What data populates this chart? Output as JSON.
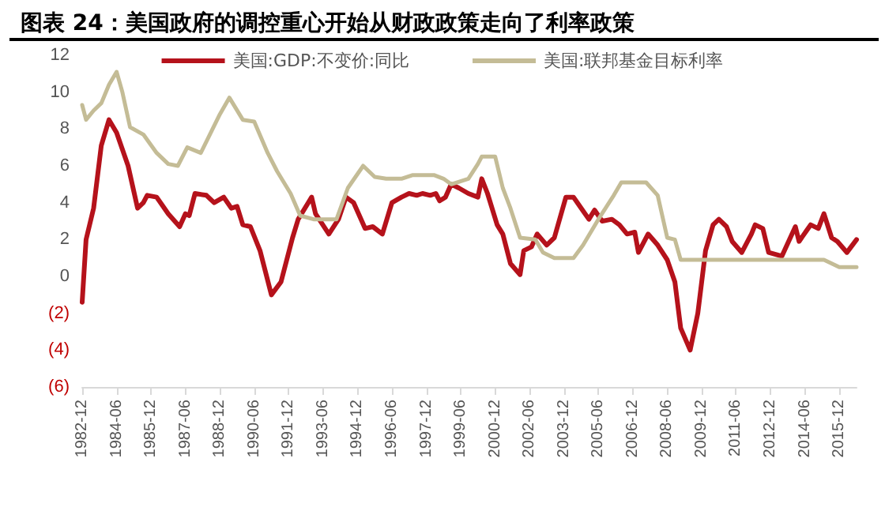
{
  "chart_data": {
    "type": "line",
    "title": "图表 24：美国政府的调控重心开始从财政政策走向了利率政策",
    "series": [
      {
        "name": "美国:GDP:不变价:同比",
        "color": "#b5121b",
        "x": [
          "1982-12",
          "1983-02",
          "1983-06",
          "1983-10",
          "1984-02",
          "1984-06",
          "1984-12",
          "1985-05",
          "1985-08",
          "1985-10",
          "1986-03",
          "1986-09",
          "1987-03",
          "1987-06",
          "1987-08",
          "1987-11",
          "1988-05",
          "1988-09",
          "1989-02",
          "1989-06",
          "1989-09",
          "1989-12",
          "1990-04",
          "1990-09",
          "1991-03",
          "1991-08",
          "1992-02",
          "1992-05",
          "1992-12",
          "1993-02",
          "1993-09",
          "1994-02",
          "1994-06",
          "1994-10",
          "1995-04",
          "1995-08",
          "1996-01",
          "1996-06",
          "1996-11",
          "1997-03",
          "1997-07",
          "1997-10",
          "1998-02",
          "1998-05",
          "1998-07",
          "1998-10",
          "1999-01",
          "1999-05",
          "1999-10",
          "2000-03",
          "2000-05",
          "2000-08",
          "2001-01",
          "2001-04",
          "2001-08",
          "2002-01",
          "2002-03",
          "2002-07",
          "2002-10",
          "2003-03",
          "2003-07",
          "2004-01",
          "2004-05",
          "2004-09",
          "2005-01",
          "2005-04",
          "2005-08",
          "2006-01",
          "2006-05",
          "2006-09",
          "2007-01",
          "2007-03",
          "2007-08",
          "2008-01",
          "2008-06",
          "2008-10",
          "2009-01",
          "2009-06",
          "2009-10",
          "2010-02",
          "2010-06",
          "2010-09",
          "2011-01",
          "2011-04",
          "2011-09",
          "2012-02",
          "2012-04",
          "2012-08",
          "2012-11",
          "2013-06",
          "2014-01",
          "2014-03",
          "2014-09",
          "2015-01",
          "2015-04",
          "2015-08",
          "2015-11",
          "2016-04",
          "2016-09"
        ],
        "values": [
          -1.4,
          2.0,
          3.7,
          7.1,
          8.5,
          7.8,
          6.0,
          3.7,
          4.0,
          4.4,
          4.3,
          3.4,
          2.7,
          3.4,
          3.3,
          4.5,
          4.4,
          4.0,
          4.3,
          3.7,
          3.8,
          2.8,
          2.7,
          1.4,
          -1.0,
          -0.3,
          2.1,
          3.1,
          4.3,
          3.4,
          2.3,
          3.1,
          4.3,
          4.0,
          2.6,
          2.7,
          2.3,
          4.0,
          4.3,
          4.5,
          4.4,
          4.5,
          4.4,
          4.5,
          4.1,
          4.3,
          5.0,
          4.8,
          4.5,
          4.3,
          5.3,
          4.5,
          2.8,
          2.3,
          0.7,
          0.1,
          1.4,
          1.6,
          2.3,
          1.7,
          2.1,
          4.3,
          4.3,
          3.7,
          3.1,
          3.6,
          3.0,
          3.1,
          2.8,
          2.3,
          2.4,
          1.3,
          2.3,
          1.7,
          0.9,
          -0.3,
          -2.8,
          -4.0,
          -2.0,
          1.4,
          2.8,
          3.1,
          2.7,
          1.9,
          1.3,
          2.3,
          2.8,
          2.6,
          1.3,
          1.1,
          2.7,
          1.9,
          2.8,
          2.6,
          3.4,
          2.1,
          1.9,
          1.3,
          2.0
        ]
      },
      {
        "name": "美国:联邦基金目标利率",
        "color": "#c4bc96",
        "x": [
          "1982-12",
          "1983-02",
          "1983-06",
          "1983-10",
          "1984-02",
          "1984-06",
          "1984-09",
          "1985-01",
          "1985-08",
          "1986-03",
          "1986-09",
          "1987-02",
          "1987-07",
          "1988-02",
          "1988-12",
          "1989-05",
          "1989-12",
          "1990-06",
          "1991-01",
          "1991-06",
          "1992-01",
          "1992-06",
          "1993-01",
          "1994-01",
          "1994-07",
          "1995-03",
          "1995-09",
          "1996-03",
          "1996-11",
          "1997-05",
          "1998-04",
          "1998-09",
          "1999-01",
          "1999-10",
          "2000-03",
          "2000-05",
          "2000-12",
          "2001-04",
          "2001-08",
          "2002-01",
          "2002-09",
          "2003-01",
          "2003-07",
          "2004-05",
          "2004-10",
          "2005-06",
          "2006-02",
          "2006-06",
          "2007-07",
          "2008-01",
          "2008-06",
          "2008-10",
          "2009-01",
          "2015-04",
          "2015-12",
          "2016-09"
        ],
        "values": [
          9.3,
          8.5,
          9.0,
          9.4,
          10.4,
          11.1,
          10.0,
          8.1,
          7.7,
          6.7,
          6.1,
          6.0,
          7.0,
          6.7,
          8.8,
          9.7,
          8.5,
          8.4,
          6.7,
          5.7,
          4.5,
          3.3,
          3.1,
          3.1,
          4.8,
          6.0,
          5.4,
          5.3,
          5.3,
          5.5,
          5.5,
          5.3,
          5.0,
          5.3,
          6.1,
          6.5,
          6.5,
          4.8,
          3.7,
          2.1,
          2.0,
          1.3,
          1.0,
          1.0,
          1.7,
          3.1,
          4.4,
          5.1,
          5.1,
          4.4,
          2.1,
          2.0,
          0.9,
          0.9,
          0.5,
          0.5
        ]
      }
    ],
    "xlim": [
      "1982-12",
      "2016-09"
    ],
    "xticks": [
      "1982-12",
      "1984-06",
      "1985-12",
      "1987-06",
      "1988-12",
      "1990-06",
      "1991-12",
      "1993-06",
      "1994-12",
      "1996-06",
      "1997-12",
      "1999-06",
      "2000-12",
      "2002-06",
      "2003-12",
      "2005-06",
      "2006-12",
      "2008-06",
      "2009-12",
      "2011-06",
      "2012-12",
      "2014-06",
      "2015-12"
    ],
    "ylim": [
      -6,
      12
    ],
    "yticks": [
      {
        "value": -6,
        "label": "(6)"
      },
      {
        "value": -4,
        "label": "(4)"
      },
      {
        "value": -2,
        "label": "(2)"
      },
      0,
      2,
      4,
      6,
      8,
      10,
      12
    ],
    "grid": false,
    "legend": "top",
    "marker": "none",
    "line_style": "solid"
  }
}
